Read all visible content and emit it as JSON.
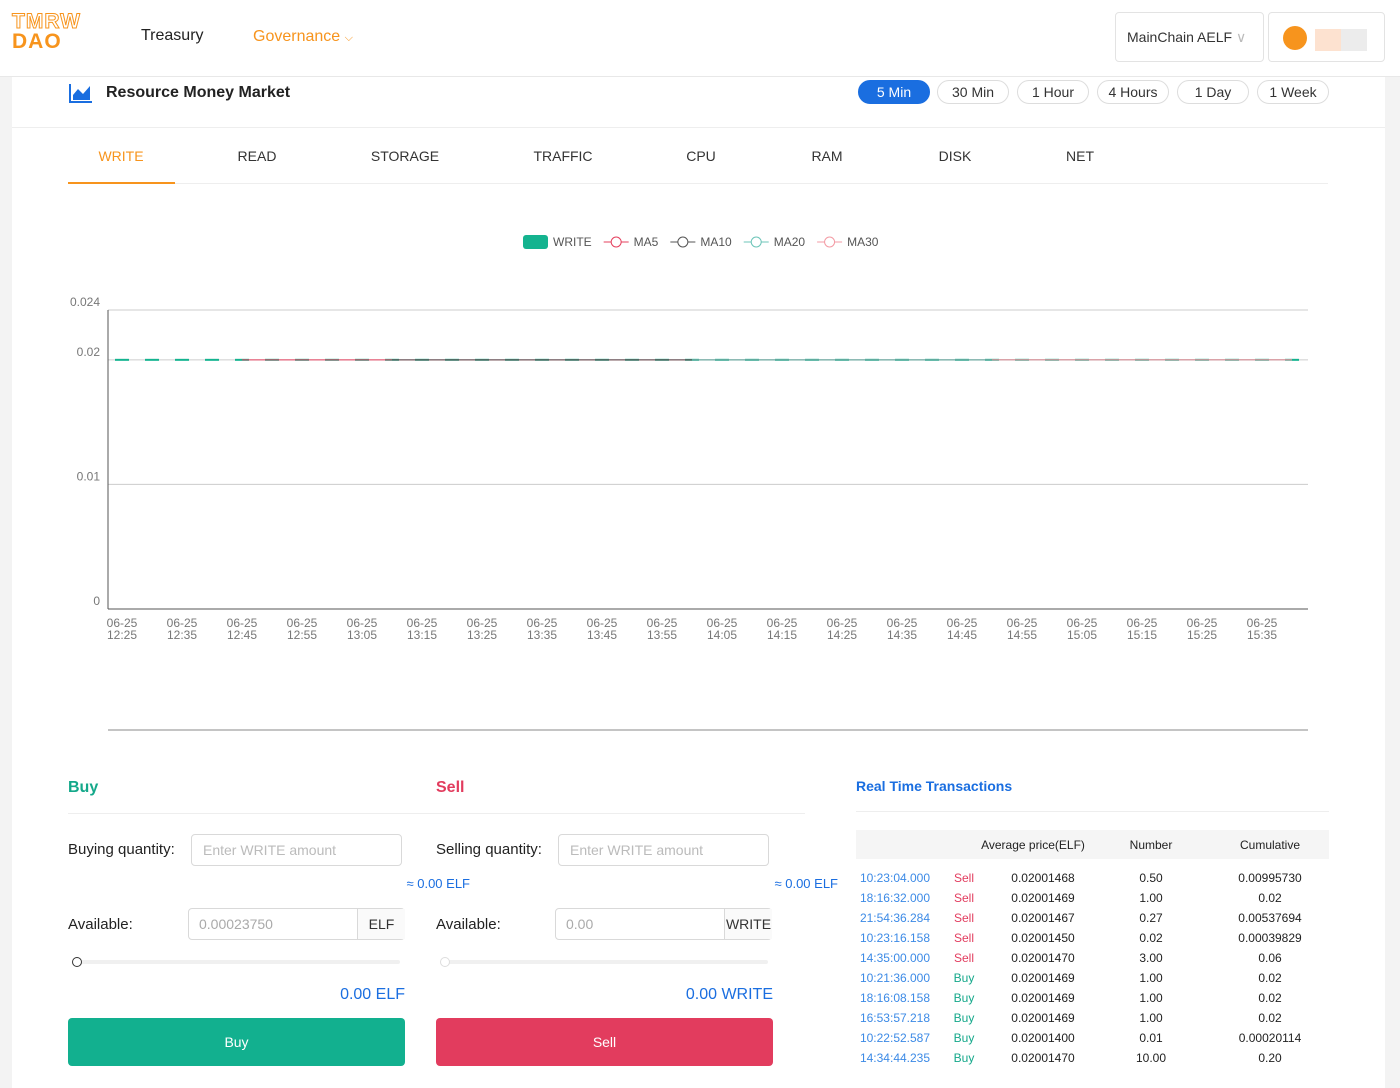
{
  "header": {
    "logo_top": "TMRW",
    "logo_bottom": "DAO",
    "nav": [
      "Treasury",
      "Governance"
    ],
    "network": "MainChain AELF"
  },
  "market": {
    "title": "Resource Money Market",
    "intervals": [
      "5 Min",
      "30 Min",
      "1 Hour",
      "4 Hours",
      "1 Day",
      "1 Week"
    ],
    "tabs": [
      "WRITE",
      "READ",
      "STORAGE",
      "TRAFFIC",
      "CPU",
      "RAM",
      "DISK",
      "NET"
    ]
  },
  "chart_data": {
    "type": "candlestick",
    "categories": [
      "06-25 12:25",
      null,
      "06-25 12:35",
      null,
      "06-25 12:45",
      null,
      "06-25 12:55",
      null,
      "06-25 13:05",
      null,
      "06-25 13:15",
      null,
      "06-25 13:25",
      null,
      "06-25 13:35",
      null,
      "06-25 13:45",
      null,
      "06-25 13:55",
      null,
      "06-25 14:05",
      null,
      "06-25 14:15",
      null,
      "06-25 14:25",
      null,
      "06-25 14:35",
      null,
      "06-25 14:45",
      null,
      "06-25 14:55",
      null,
      "06-25 15:05",
      null,
      "06-25 15:15",
      null,
      "06-25 15:25",
      null,
      "06-25 15:35",
      null
    ],
    "series": [
      {
        "name": "WRITE",
        "color": "#14b38f",
        "values": [
          0.02,
          0.02,
          0.02,
          0.02,
          0.02,
          0.02,
          0.02,
          0.02,
          0.02,
          0.02,
          0.02,
          0.02,
          0.02,
          0.02,
          0.02,
          0.02,
          0.02,
          0.02,
          0.02,
          0.02,
          0.02,
          0.02,
          0.02,
          0.02,
          0.02,
          0.02,
          0.02,
          0.02,
          0.02,
          0.02,
          0.02,
          0.02,
          0.02,
          0.02,
          0.02,
          0.02,
          0.02,
          0.02,
          0.02,
          0.02
        ]
      },
      {
        "name": "MA5",
        "color": "#e4405e",
        "values": [
          null,
          null,
          null,
          null,
          0.02,
          0.02,
          0.02,
          0.02,
          0.02,
          0.02,
          0.02,
          0.02,
          0.02,
          0.02,
          0.02,
          0.02,
          0.02,
          0.02,
          0.02,
          0.02,
          0.02,
          0.02,
          0.02,
          0.02,
          0.02,
          0.02,
          0.02,
          0.02,
          0.02,
          0.02,
          0.02,
          0.02,
          0.02,
          0.02,
          0.02,
          0.02,
          0.02,
          0.02,
          0.02,
          0.02
        ]
      },
      {
        "name": "MA10",
        "color": "#555555",
        "values": [
          null,
          null,
          null,
          null,
          null,
          null,
          null,
          null,
          null,
          0.02,
          0.02,
          0.02,
          0.02,
          0.02,
          0.02,
          0.02,
          0.02,
          0.02,
          0.02,
          0.02,
          0.02,
          0.02,
          0.02,
          0.02,
          0.02,
          0.02,
          0.02,
          0.02,
          0.02,
          0.02,
          0.02,
          0.02,
          0.02,
          0.02,
          0.02,
          0.02,
          0.02,
          0.02,
          0.02,
          0.02
        ]
      },
      {
        "name": "MA20",
        "color": "#6cc4b8",
        "values": [
          null,
          null,
          null,
          null,
          null,
          null,
          null,
          null,
          null,
          null,
          null,
          null,
          null,
          null,
          null,
          null,
          null,
          null,
          null,
          0.02,
          0.02,
          0.02,
          0.02,
          0.02,
          0.02,
          0.02,
          0.02,
          0.02,
          0.02,
          0.02,
          0.02,
          0.02,
          0.02,
          0.02,
          0.02,
          0.02,
          0.02,
          0.02,
          0.02,
          0.02
        ]
      },
      {
        "name": "MA30",
        "color": "#f39ba4",
        "values": [
          null,
          null,
          null,
          null,
          null,
          null,
          null,
          null,
          null,
          null,
          null,
          null,
          null,
          null,
          null,
          null,
          null,
          null,
          null,
          null,
          null,
          null,
          null,
          null,
          null,
          null,
          null,
          null,
          null,
          0.02,
          0.02,
          0.02,
          0.02,
          0.02,
          0.02,
          0.02,
          0.02,
          0.02,
          0.02,
          0.02
        ]
      }
    ],
    "ylim": [
      0,
      0.024
    ],
    "yticks": [
      0,
      0.01,
      0.02,
      0.024
    ],
    "grid": true
  },
  "buy": {
    "title": "Buy",
    "quantity_label": "Buying quantity:",
    "placeholder": "Enter WRITE amount",
    "estimate": "≈ 0.00 ELF",
    "available_label": "Available:",
    "available": "0.00023750",
    "unit": "ELF",
    "total": "0.00 ELF",
    "button": "Buy"
  },
  "sell": {
    "title": "Sell",
    "quantity_label": "Selling quantity:",
    "placeholder": "Enter WRITE amount",
    "estimate": "≈ 0.00 ELF",
    "available_label": "Available:",
    "available": "0.00",
    "unit": "WRITE",
    "total": "0.00 WRITE",
    "button": "Sell"
  },
  "transactions": {
    "title": "Real Time Transactions",
    "columns": [
      "Average price(ELF)",
      "Number",
      "Cumulative"
    ],
    "rows": [
      [
        "10:23:04.000",
        "Sell",
        "0.02001468",
        "0.50",
        "0.00995730"
      ],
      [
        "18:16:32.000",
        "Sell",
        "0.02001469",
        "1.00",
        "0.02"
      ],
      [
        "21:54:36.284",
        "Sell",
        "0.02001467",
        "0.27",
        "0.00537694"
      ],
      [
        "10:23:16.158",
        "Sell",
        "0.02001450",
        "0.02",
        "0.00039829"
      ],
      [
        "14:35:00.000",
        "Sell",
        "0.02001470",
        "3.00",
        "0.06"
      ],
      [
        "10:21:36.000",
        "Buy",
        "0.02001469",
        "1.00",
        "0.02"
      ],
      [
        "18:16:08.158",
        "Buy",
        "0.02001469",
        "1.00",
        "0.02"
      ],
      [
        "16:53:57.218",
        "Buy",
        "0.02001469",
        "1.00",
        "0.02"
      ],
      [
        "10:22:52.587",
        "Buy",
        "0.02001400",
        "0.01",
        "0.00020114"
      ],
      [
        "14:34:44.235",
        "Buy",
        "0.02001470",
        "10.00",
        "0.20"
      ]
    ]
  }
}
